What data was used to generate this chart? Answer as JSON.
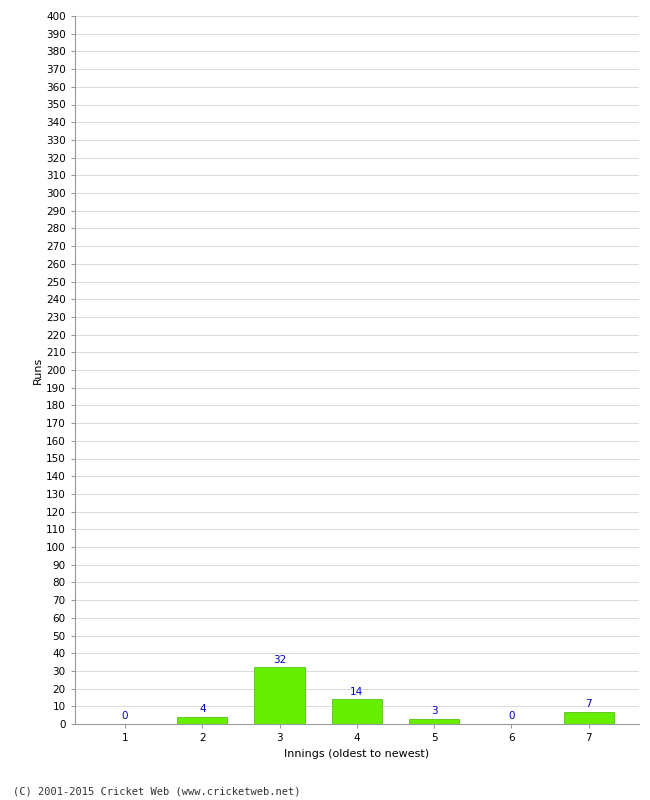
{
  "categories": [
    "1",
    "2",
    "3",
    "4",
    "5",
    "6",
    "7"
  ],
  "values": [
    0,
    4,
    32,
    14,
    3,
    0,
    7
  ],
  "bar_color": "#66ee00",
  "bar_edge_color": "#44bb00",
  "label_color": "#0000cc",
  "xlabel": "Innings (oldest to newest)",
  "ylabel": "Runs",
  "ylim": [
    0,
    400
  ],
  "ytick_step": 10,
  "background_color": "#ffffff",
  "grid_color": "#cccccc",
  "footer": "(C) 2001-2015 Cricket Web (www.cricketweb.net)",
  "label_fontsize": 7.5,
  "axis_label_fontsize": 8,
  "tick_fontsize": 7.5,
  "footer_fontsize": 7.5
}
